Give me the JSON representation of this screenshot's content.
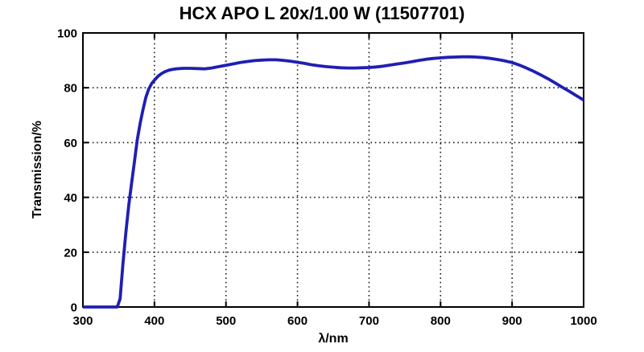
{
  "chart_data": {
    "type": "line",
    "title": "HCX APO L 20x/1.00 W (11507701)",
    "xlabel": "λ/nm",
    "ylabel": "Transmission/%",
    "xlim": [
      300,
      1000
    ],
    "ylim": [
      0,
      100
    ],
    "x_ticks": [
      300,
      400,
      500,
      600,
      700,
      800,
      900,
      1000
    ],
    "y_ticks": [
      0,
      20,
      40,
      60,
      80,
      100
    ],
    "grid": "dotted",
    "grid_color": "#1a1a1a",
    "axis_color": "#000000",
    "background_color": "#ffffff",
    "legend": "none",
    "series": [
      {
        "name": "transmission",
        "color": "#1f1fb4",
        "x": [
          300,
          310,
          320,
          330,
          340,
          348,
          352,
          356,
          360,
          364,
          368,
          372,
          376,
          380,
          384,
          388,
          392,
          396,
          400,
          405,
          410,
          415,
          420,
          425,
          430,
          440,
          450,
          460,
          470,
          480,
          490,
          500,
          510,
          520,
          530,
          540,
          550,
          560,
          570,
          580,
          590,
          600,
          610,
          620,
          630,
          640,
          650,
          660,
          670,
          680,
          690,
          700,
          710,
          720,
          730,
          740,
          750,
          760,
          770,
          780,
          790,
          800,
          810,
          820,
          830,
          840,
          850,
          860,
          870,
          880,
          890,
          900,
          910,
          920,
          930,
          940,
          950,
          960,
          970,
          980,
          990,
          1000
        ],
        "y": [
          0,
          0,
          0,
          0,
          0,
          0,
          3,
          16,
          27,
          37,
          45,
          53,
          61,
          67,
          72,
          76.5,
          79.5,
          81.5,
          82.8,
          84.2,
          85.2,
          85.9,
          86.4,
          86.7,
          86.9,
          87.1,
          87.1,
          87.0,
          86.9,
          87.2,
          87.7,
          88.2,
          88.7,
          89.2,
          89.6,
          89.9,
          90.1,
          90.2,
          90.2,
          90.0,
          89.7,
          89.3,
          88.9,
          88.4,
          88.0,
          87.7,
          87.5,
          87.3,
          87.2,
          87.2,
          87.3,
          87.4,
          87.6,
          87.9,
          88.3,
          88.7,
          89.1,
          89.5,
          90.0,
          90.4,
          90.7,
          90.9,
          91.1,
          91.2,
          91.3,
          91.3,
          91.2,
          91.0,
          90.7,
          90.3,
          89.8,
          89.2,
          88.3,
          87.2,
          86.0,
          84.7,
          83.3,
          81.8,
          80.2,
          78.7,
          77.1,
          75.5
        ]
      }
    ]
  }
}
